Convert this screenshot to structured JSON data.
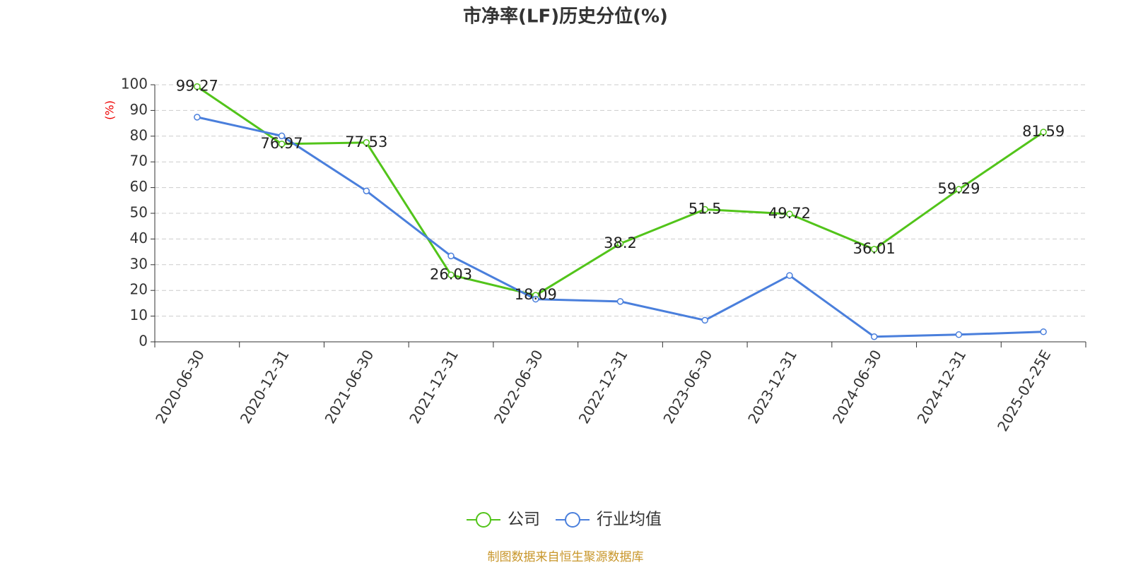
{
  "chart_data": {
    "type": "line",
    "title": "市净率(LF)历史分位(%)",
    "y_label": "(%)",
    "categories": [
      "2020-06-30",
      "2020-12-31",
      "2021-06-30",
      "2021-12-31",
      "2022-06-30",
      "2022-12-31",
      "2023-06-30",
      "2023-12-31",
      "2024-06-30",
      "2024-12-31",
      "2025-02-25E"
    ],
    "series": [
      {
        "name": "公司",
        "color": "#52c41a",
        "values": [
          99.27,
          76.97,
          77.53,
          26.03,
          18.09,
          38.2,
          51.5,
          49.72,
          36.01,
          59.29,
          81.59
        ],
        "show_labels": true
      },
      {
        "name": "行业均值",
        "color": "#4a7fdc",
        "values": [
          87.4,
          80.1,
          58.7,
          33.4,
          16.6,
          15.7,
          8.4,
          25.8,
          2.0,
          2.8,
          3.9
        ],
        "show_labels": false
      }
    ],
    "ylim": [
      0,
      100
    ],
    "yticks": [
      0,
      10,
      20,
      30,
      40,
      50,
      60,
      70,
      80,
      90,
      100
    ],
    "grid": true,
    "legend": "bottom",
    "source": "制图数据来自恒生聚源数据库"
  }
}
